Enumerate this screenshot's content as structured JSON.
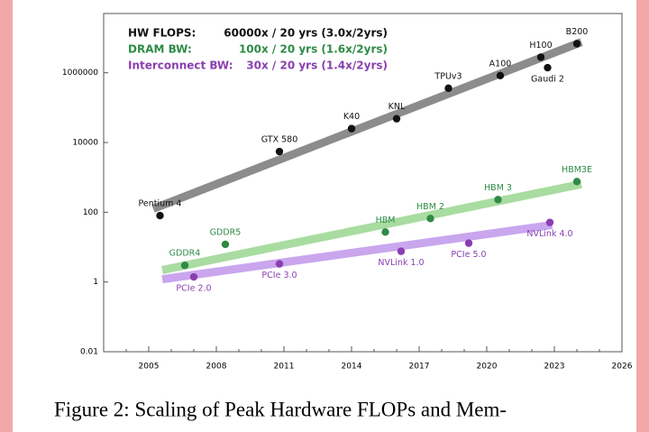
{
  "chart_data": {
    "type": "scatter",
    "xlim": [
      2003,
      2026
    ],
    "xticks": [
      2005,
      2008,
      2011,
      2014,
      2017,
      2020,
      2023,
      2026
    ],
    "ylim": [
      0.01,
      50000000
    ],
    "yticks": [
      0.01,
      1,
      100,
      10000,
      1000000
    ],
    "log_y": true,
    "series": [
      {
        "name": "HW FLOPS:",
        "growth": "60000x / 20 yrs (3.0x/2yrs)",
        "color": "#111111",
        "trend_color": "#8c8c8c",
        "labels": [
          "Pentium 4",
          "GTX 580",
          "K40",
          "KNL",
          "TPUv3",
          "A100",
          "H100",
          "Gaudi 2",
          "B200"
        ],
        "x": [
          2005.5,
          2010.8,
          2014,
          2016,
          2018.3,
          2020.6,
          2022.4,
          2022.7,
          2024
        ],
        "values": [
          80,
          5500,
          25000,
          48000,
          360000,
          830000,
          2800000,
          1400000,
          6800000
        ],
        "trend": {
          "x": [
            2005.2,
            2024.2
          ],
          "values": [
            126,
            7600000
          ]
        }
      },
      {
        "name": "DRAM BW:",
        "growth": "100x / 20 yrs (1.6x/2yrs)",
        "color": "#2e8b46",
        "trend_color": "#a8dca0",
        "labels": [
          "GDDR4",
          "GDDR5",
          "HBM",
          "HBM 2",
          "HBM 3",
          "HBM3E"
        ],
        "x": [
          2006.6,
          2008.4,
          2015.5,
          2017.5,
          2020.5,
          2024
        ],
        "values": [
          3,
          12,
          27,
          66,
          230,
          760
        ],
        "trend": {
          "x": [
            2005.6,
            2024.2
          ],
          "values": [
            2.2,
            640
          ]
        }
      },
      {
        "name": "Interconnect BW:",
        "growth": "30x / 20 yrs (1.4x/2yrs)",
        "color": "#8a3fb0",
        "trend_color": "#c9a6ee",
        "labels": [
          "PCIe 2.0",
          "PCIe 3.0",
          "NVLink 1.0",
          "PCIe 5.0",
          "NVLink 4.0"
        ],
        "x": [
          2007,
          2010.8,
          2016.2,
          2019.2,
          2022.8
        ],
        "values": [
          1.4,
          3.3,
          7.6,
          13,
          51
        ],
        "trend": {
          "x": [
            2005.6,
            2022.9
          ],
          "values": [
            1.2,
            43
          ]
        }
      }
    ]
  },
  "caption": "Figure 2: Scaling of Peak Hardware FLOPs and Mem-"
}
